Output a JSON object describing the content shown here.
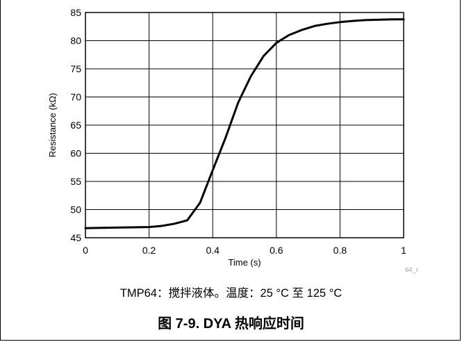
{
  "chart_data": {
    "type": "line",
    "title": "",
    "xlabel": "Time (s)",
    "ylabel": "Resistance (kΩ)",
    "xlim": [
      0,
      1
    ],
    "ylim": [
      45,
      85
    ],
    "xticks": [
      0,
      0.2,
      0.4,
      0.6,
      0.8,
      1
    ],
    "xtick_labels": [
      "0",
      "0.2",
      "0.4",
      "0.6",
      "0.8",
      "1"
    ],
    "yticks": [
      45,
      50,
      55,
      60,
      65,
      70,
      75,
      80,
      85
    ],
    "ytick_labels": [
      "45",
      "50",
      "55",
      "60",
      "65",
      "70",
      "75",
      "80",
      "85"
    ],
    "grid": true,
    "legend": "none",
    "series": [
      {
        "color": "#000000",
        "x": [
          0,
          0.1,
          0.2,
          0.24,
          0.28,
          0.32,
          0.36,
          0.4,
          0.44,
          0.48,
          0.52,
          0.56,
          0.6,
          0.64,
          0.68,
          0.72,
          0.76,
          0.8,
          0.84,
          0.88,
          0.92,
          0.96,
          1.0
        ],
        "y": [
          46.7,
          46.8,
          46.9,
          47.1,
          47.5,
          48.1,
          51.2,
          57.0,
          62.7,
          69.0,
          73.7,
          77.3,
          79.6,
          81.0,
          81.9,
          82.6,
          83.0,
          83.3,
          83.5,
          83.65,
          83.72,
          83.78,
          83.8
        ]
      }
    ]
  },
  "figure": {
    "id_label": "64_r",
    "subcaption": "TMP64：搅拌液体。温度：25 °C 至 125 °C",
    "caption": "图 7-9. DYA 热响应时间"
  }
}
